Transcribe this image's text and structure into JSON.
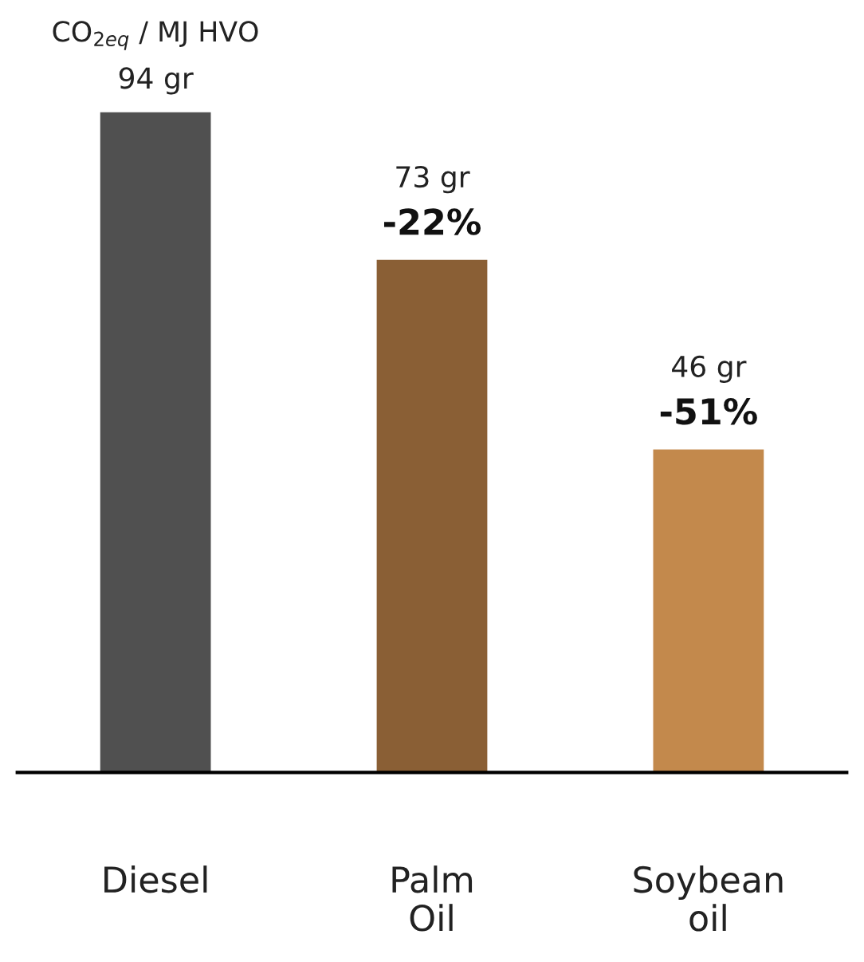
{
  "chart_data": {
    "type": "bar",
    "ylabel": "CO$_{2eq}$ / MJ HVO",
    "categories": [
      "Diesel",
      "Palm\nOil",
      "Soybean\noil"
    ],
    "values": [
      94,
      73,
      46
    ],
    "colors": [
      "#505050",
      "#8a5f35",
      "#c3894c"
    ],
    "value_labels": [
      "94 gr",
      "73 gr",
      "46 gr"
    ],
    "annotations": [
      {
        "text": "-22%",
        "x": "Palm\nOil",
        "y": 73
      },
      {
        "text": "-51%",
        "x": "Soybean\noil",
        "y": 46
      }
    ],
    "relative": false,
    "grid": false,
    "legend": false
  }
}
